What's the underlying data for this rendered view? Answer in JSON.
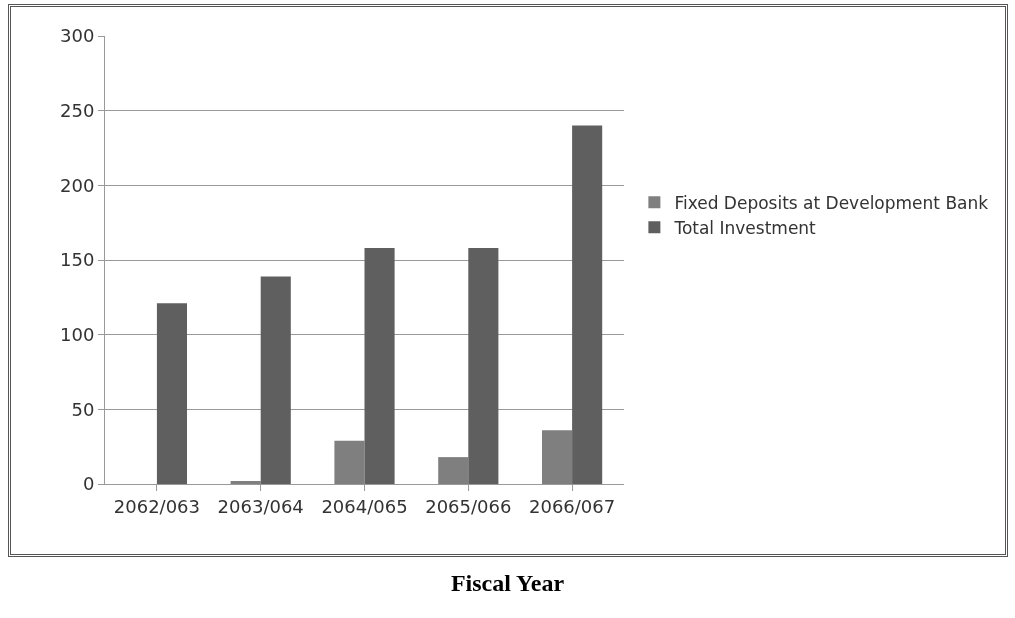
{
  "chart_data": {
    "type": "bar",
    "xlabel": "Fiscal Year",
    "categories": [
      "2062/063",
      "2063/064",
      "2064/065",
      "2065/066",
      "2066/067"
    ],
    "series": [
      {
        "name": "Fixed Deposits at Development Bank",
        "color": "#7f7f7f",
        "values": [
          0,
          2,
          29,
          18,
          36
        ]
      },
      {
        "name": "Total Investment",
        "color": "#5f5f5f",
        "values": [
          121,
          139,
          158,
          158,
          240
        ]
      }
    ],
    "ylim": [
      0,
      300
    ],
    "yticks": [
      0,
      50,
      100,
      150,
      200,
      250,
      300
    ],
    "grid": "y",
    "legend": "right"
  }
}
